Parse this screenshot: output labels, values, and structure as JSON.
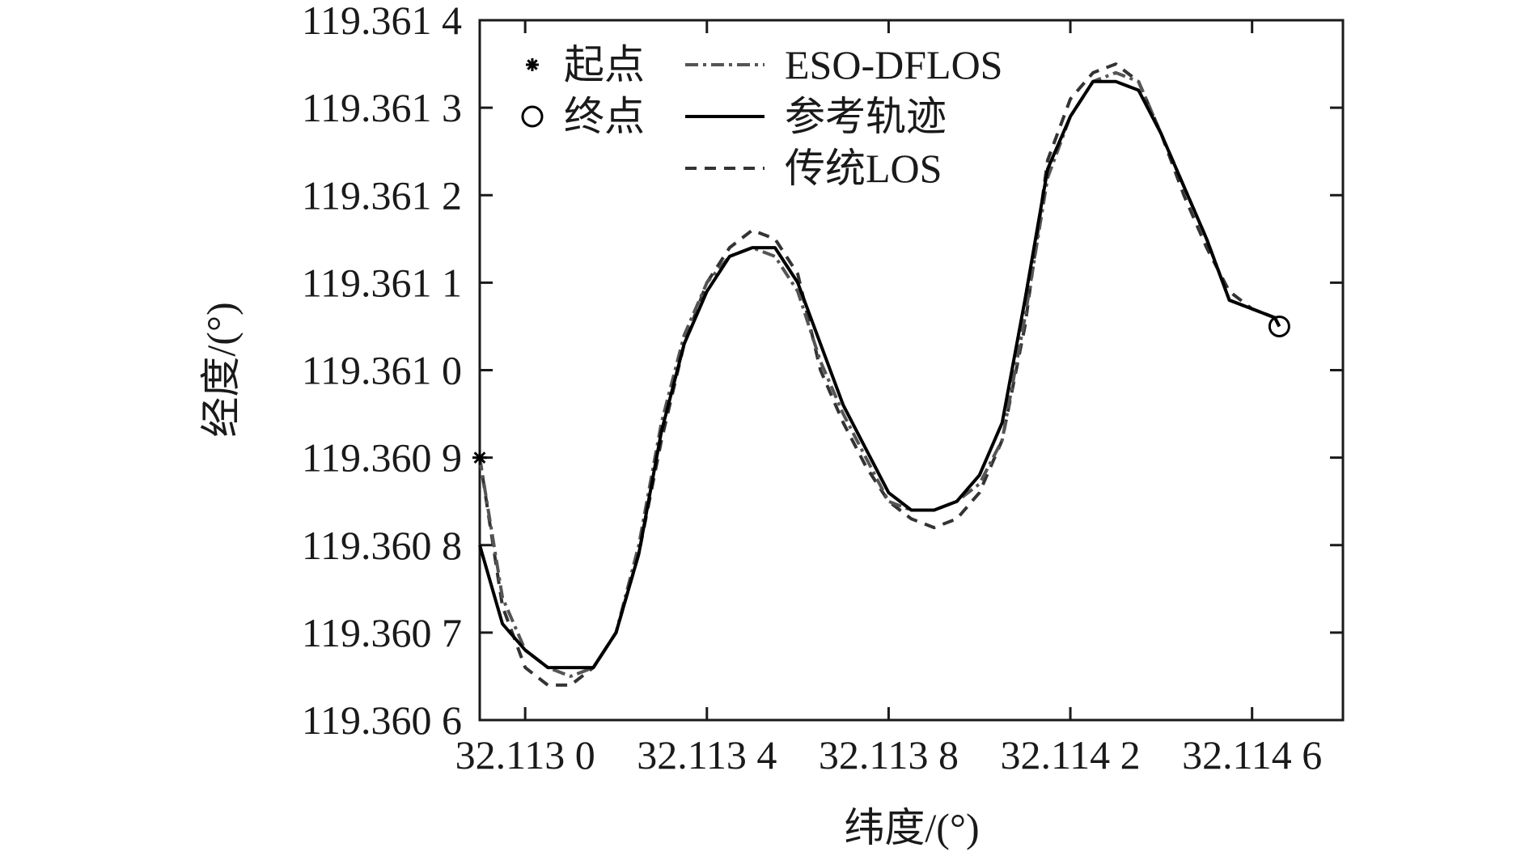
{
  "chart_data": {
    "type": "line",
    "xlabel": "纬度/(°)",
    "ylabel": "经度/(°)",
    "xlim": [
      32.1129,
      32.1148
    ],
    "ylim": [
      119.3606,
      119.3614
    ],
    "x_ticks": [
      32.113,
      32.1134,
      32.1138,
      32.1142,
      32.1146
    ],
    "x_tick_labels": [
      "32.113 0",
      "32.113 4",
      "32.113 8",
      "32.114 2",
      "32.114 6"
    ],
    "y_ticks": [
      119.3606,
      119.3607,
      119.3608,
      119.3609,
      119.361,
      119.3611,
      119.3612,
      119.3613,
      119.3614
    ],
    "y_tick_labels": [
      "119.360 6",
      "119.360 7",
      "119.360 8",
      "119.360 9",
      "119.361 0",
      "119.361 1",
      "119.361 2",
      "119.361 3",
      "119.361 4"
    ],
    "grid": false,
    "legend_position": "top-left",
    "legend": {
      "markers": [
        {
          "label": "起点",
          "symbol": "asterisk"
        },
        {
          "label": "终点",
          "symbol": "circle"
        }
      ],
      "lines": [
        {
          "label": "ESO-DFLOS",
          "style": "dash-dot",
          "color": "#555555"
        },
        {
          "label": "参考轨迹",
          "style": "solid",
          "color": "#000000"
        },
        {
          "label": "传统LOS",
          "style": "dashed",
          "color": "#333333"
        }
      ]
    },
    "start_point": {
      "x": 32.1129,
      "y": 119.3609
    },
    "end_point": {
      "x": 32.11466,
      "y": 119.36105
    },
    "series": [
      {
        "name": "参考轨迹",
        "style": "solid",
        "color": "#000000",
        "x": [
          32.1129,
          32.11295,
          32.113,
          32.11305,
          32.1131,
          32.11315,
          32.1132,
          32.11325,
          32.1133,
          32.11335,
          32.1134,
          32.11345,
          32.1135,
          32.11355,
          32.1136,
          32.11365,
          32.1137,
          32.11375,
          32.1138,
          32.11385,
          32.1139,
          32.11395,
          32.114,
          32.11405,
          32.1141,
          32.11415,
          32.1142,
          32.11425,
          32.1143,
          32.11435,
          32.1144,
          32.11445,
          32.1145,
          32.11455,
          32.1146,
          32.11465,
          32.11466
        ],
        "y": [
          119.3608,
          119.36071,
          119.36068,
          119.36066,
          119.36066,
          119.36066,
          119.3607,
          119.36079,
          119.36093,
          119.36103,
          119.36109,
          119.36113,
          119.36114,
          119.36114,
          119.3611,
          119.36103,
          119.36096,
          119.36091,
          119.36086,
          119.36084,
          119.36084,
          119.36085,
          119.36088,
          119.36094,
          119.36108,
          119.36123,
          119.36129,
          119.36133,
          119.36133,
          119.36132,
          119.36127,
          119.36121,
          119.36115,
          119.36108,
          119.36107,
          119.36106,
          119.36105
        ]
      },
      {
        "name": "ESO-DFLOS",
        "style": "dash-dot",
        "color": "#555555",
        "x": [
          32.1129,
          32.11295,
          32.113,
          32.11305,
          32.1131,
          32.11315,
          32.1132,
          32.11325,
          32.1133,
          32.11335,
          32.1134,
          32.11345,
          32.1135,
          32.11355,
          32.1136,
          32.11365,
          32.1137,
          32.11375,
          32.1138,
          32.11385,
          32.1139,
          32.11395,
          32.114,
          32.11405,
          32.1141,
          32.11415,
          32.1142,
          32.11425,
          32.1143,
          32.11435,
          32.1144,
          32.11445,
          32.1145,
          32.11455,
          32.1146,
          32.11465,
          32.11466
        ],
        "y": [
          119.3609,
          119.36074,
          119.36068,
          119.36066,
          119.36065,
          119.36066,
          119.3607,
          119.3608,
          119.36094,
          119.36104,
          119.3611,
          119.36113,
          119.36114,
          119.36113,
          119.36109,
          119.36101,
          119.36095,
          119.3609,
          119.36085,
          119.36084,
          119.36084,
          119.36085,
          119.36087,
          119.36092,
          119.36106,
          119.36122,
          119.36129,
          119.36133,
          119.36134,
          119.36133,
          119.36127,
          119.36121,
          119.36115,
          119.36108,
          119.36107,
          119.36106,
          119.36105
        ]
      },
      {
        "name": "传统LOS",
        "style": "dashed",
        "color": "#333333",
        "x": [
          32.1129,
          32.11295,
          32.113,
          32.11305,
          32.1131,
          32.11315,
          32.1132,
          32.11325,
          32.1133,
          32.11335,
          32.1134,
          32.11345,
          32.1135,
          32.11355,
          32.1136,
          32.11365,
          32.1137,
          32.11375,
          32.1138,
          32.11385,
          32.1139,
          32.11395,
          32.114,
          32.11405,
          32.1141,
          32.11415,
          32.1142,
          32.11425,
          32.1143,
          32.11435,
          32.1144,
          32.11445,
          32.1145,
          32.11455,
          32.1146,
          32.11465,
          32.11466
        ],
        "y": [
          119.3609,
          119.36073,
          119.36066,
          119.36064,
          119.36064,
          119.36066,
          119.3607,
          119.36079,
          119.36092,
          119.36103,
          119.3611,
          119.36114,
          119.36116,
          119.36115,
          119.36111,
          119.361,
          119.36094,
          119.36089,
          119.36085,
          119.36083,
          119.36082,
          119.36083,
          119.36086,
          119.36092,
          119.36105,
          119.36124,
          119.36131,
          119.36134,
          119.36135,
          119.36133,
          119.36127,
          119.3612,
          119.36114,
          119.36109,
          119.36107,
          119.36106,
          119.36105
        ]
      }
    ]
  }
}
